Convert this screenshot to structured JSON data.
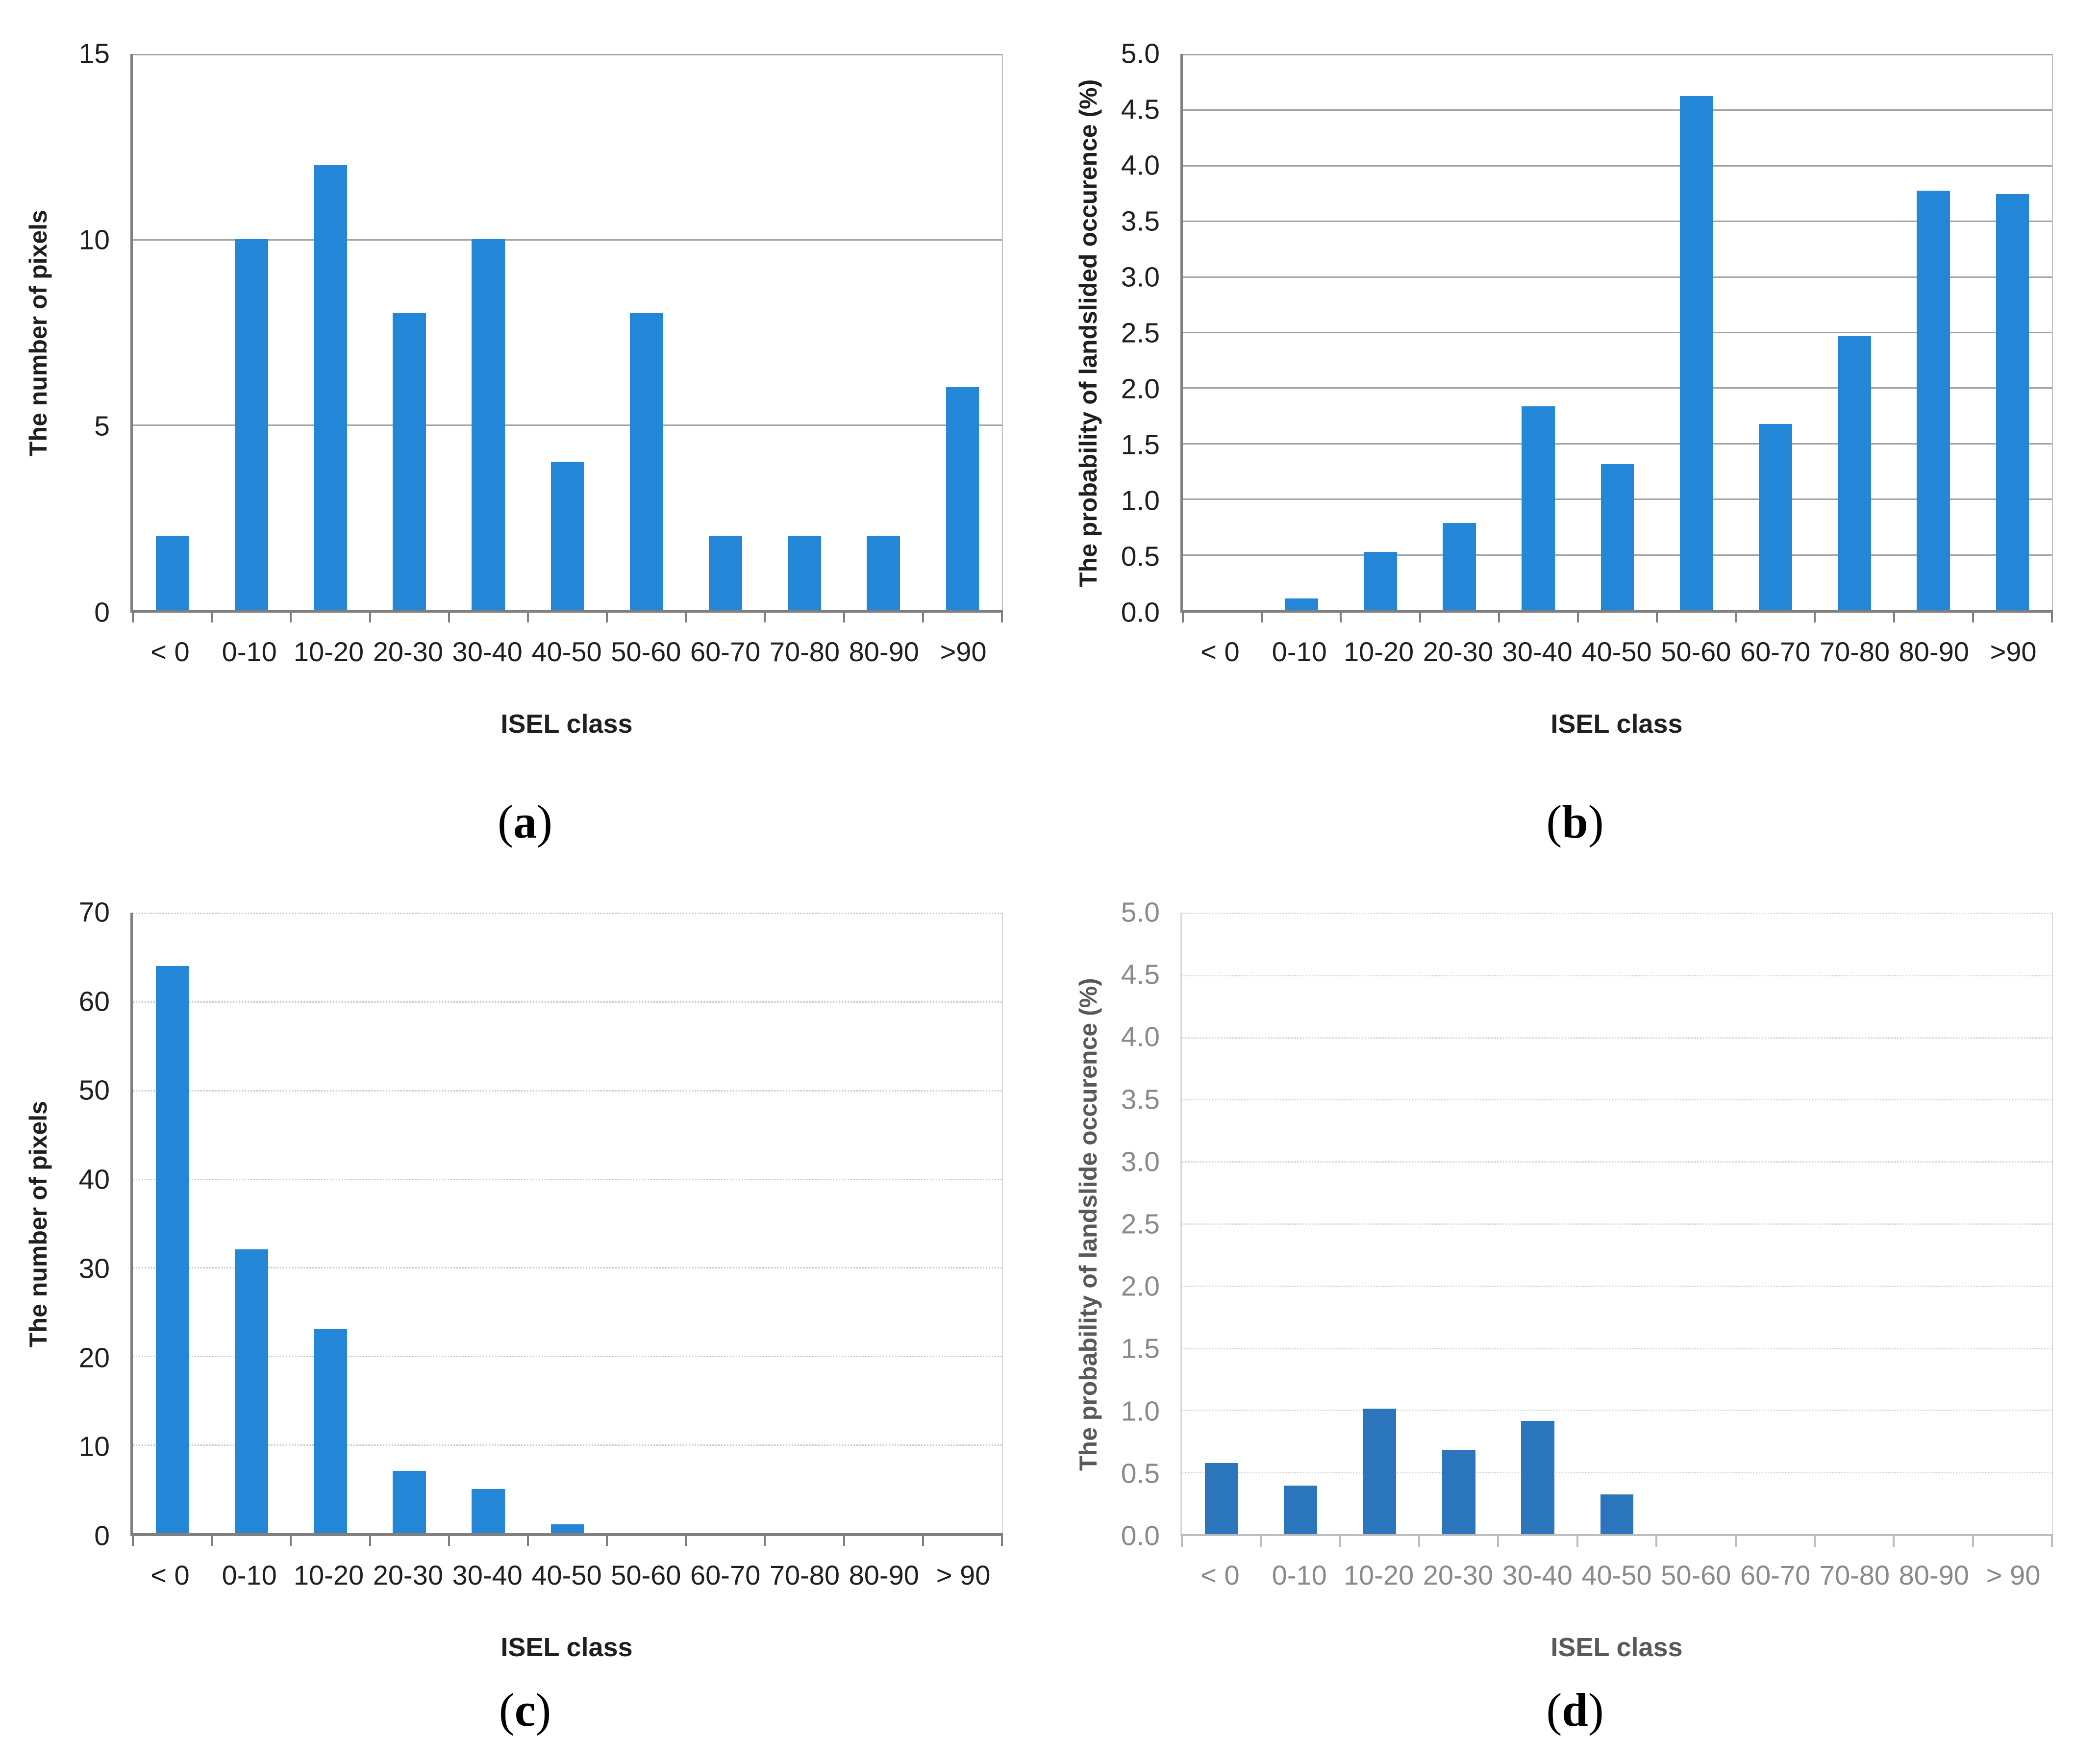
{
  "page": {
    "background": "#ffffff"
  },
  "chart_data": [
    {
      "type": "bar",
      "panel_id": "a",
      "title": "",
      "ylabel": "The number of pixels",
      "xlabel": "ISEL class",
      "caption": {
        "open": "(",
        "letter": "a",
        "close": ")"
      },
      "categories": [
        "< 0",
        "0-10",
        "10-20",
        "20-30",
        "30-40",
        "40-50",
        "50-60",
        "60-70",
        "70-80",
        "80-90",
        ">90"
      ],
      "values": [
        2,
        10,
        12,
        8,
        10,
        4,
        8,
        2,
        2,
        2,
        6
      ],
      "ylim": [
        0,
        15
      ],
      "ystep": 5,
      "ydecimals": 0,
      "grid_style": "solid",
      "legend": "none",
      "colors": {
        "bar": "#2386d7",
        "grid": "#a3a3a3",
        "axis_left": "#7f7f7f",
        "axis_bottom": "#7f7f7f",
        "box": "#bfbfbf",
        "tick_text": "#1f1f1f",
        "title_text": "#1f1f1f"
      }
    },
    {
      "type": "bar",
      "panel_id": "b",
      "title": "",
      "ylabel": "The probability of landslided occurence (%)",
      "xlabel": "ISEL class",
      "caption": {
        "open": "(",
        "letter": "b",
        "close": ")"
      },
      "categories": [
        "< 0",
        "0-10",
        "10-20",
        "20-30",
        "30-40",
        "40-50",
        "50-60",
        "60-70",
        "70-80",
        "80-90",
        ">90"
      ],
      "values": [
        0,
        0.1,
        0.52,
        0.78,
        1.83,
        1.31,
        4.62,
        1.67,
        2.46,
        3.77,
        3.74
      ],
      "ylim": [
        0,
        5
      ],
      "ystep": 0.5,
      "ydecimals": 1,
      "grid_style": "solid",
      "legend": "none",
      "colors": {
        "bar": "#2386d7",
        "grid": "#a3a3a3",
        "axis_left": "#7f7f7f",
        "axis_bottom": "#7f7f7f",
        "box": "#bfbfbf",
        "tick_text": "#1f1f1f",
        "title_text": "#1f1f1f"
      }
    },
    {
      "type": "bar",
      "panel_id": "c",
      "title": "",
      "ylabel": "The number of pixels",
      "xlabel": "ISEL class",
      "caption": {
        "open": "(",
        "letter": "c",
        "close": ")"
      },
      "categories": [
        "< 0",
        "0-10",
        "10-20",
        "20-30",
        "30-40",
        "40-50",
        "50-60",
        "60-70",
        "70-80",
        "80-90",
        "> 90"
      ],
      "values": [
        64,
        32,
        23,
        7,
        5,
        1,
        0,
        0,
        0,
        0,
        0
      ],
      "ylim": [
        0,
        70
      ],
      "ystep": 10,
      "ydecimals": 0,
      "grid_style": "dotted",
      "legend": "none",
      "colors": {
        "bar": "#2386d7",
        "grid": "#c6c6c6",
        "axis_left": "#7f7f7f",
        "axis_bottom": "#7f7f7f",
        "box": "#d9d9d9",
        "tick_text": "#1f1f1f",
        "title_text": "#1f1f1f"
      }
    },
    {
      "type": "bar",
      "panel_id": "d",
      "title": "",
      "ylabel": "The probability of landslide occurence (%)",
      "xlabel": "ISEL class",
      "caption": {
        "open": "(",
        "letter": "d",
        "close": ")"
      },
      "categories": [
        "< 0",
        "0-10",
        "10-20",
        "20-30",
        "30-40",
        "40-50",
        "50-60",
        "60-70",
        "70-80",
        "80-90",
        "> 90"
      ],
      "values": [
        0.57,
        0.39,
        1.01,
        0.68,
        0.91,
        0.32,
        0,
        0,
        0,
        0,
        0
      ],
      "ylim": [
        0,
        5
      ],
      "ystep": 0.5,
      "ydecimals": 1,
      "grid_style": "dotted",
      "legend": "none",
      "colors": {
        "bar": "#2a75bb",
        "grid": "#d6d6d6",
        "axis_left": "#d9d9d9",
        "axis_bottom": "#bdbdbd",
        "box": "#d9d9d9",
        "tick_text": "#8a8a8a",
        "title_text": "#595959"
      }
    }
  ]
}
